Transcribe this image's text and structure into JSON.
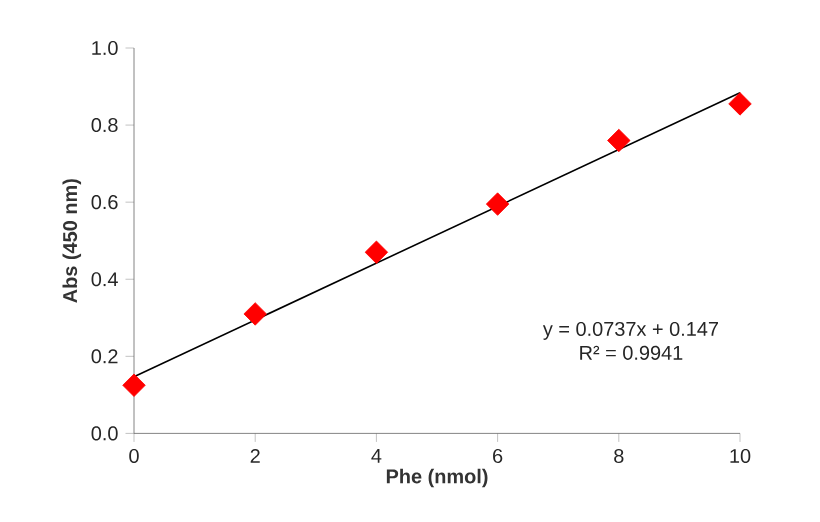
{
  "chart_data": {
    "type": "scatter",
    "xlabel": "Phe (nmol)",
    "ylabel": "Abs (450 nm)",
    "xlim": [
      0,
      10
    ],
    "ylim": [
      0,
      1.0
    ],
    "xticks": [
      0,
      2,
      4,
      6,
      8,
      10
    ],
    "yticks": [
      {
        "value": 0,
        "label": "0.0"
      },
      {
        "value": 0.2,
        "label": "0.2"
      },
      {
        "value": 0.4,
        "label": "0.4"
      },
      {
        "value": 0.6,
        "label": "0.6"
      },
      {
        "value": 0.8,
        "label": "0.8"
      },
      {
        "value": 1.0,
        "label": "1.0"
      }
    ],
    "x": [
      0,
      2,
      4,
      6,
      8,
      10
    ],
    "series": [
      {
        "color": "#ff0000",
        "marker": "diamond",
        "values": [
          0.125,
          0.31,
          0.47,
          0.595,
          0.76,
          0.855
        ]
      },
      {
        "type": "line",
        "color": "#000000",
        "marker": "none",
        "line_style": "solid",
        "x": [
          0,
          10
        ],
        "values": [
          0.147,
          0.884
        ]
      }
    ],
    "annotations": [
      "y = 0.0737x + 0.147",
      "R² = 0.9941"
    ],
    "grid": false
  }
}
